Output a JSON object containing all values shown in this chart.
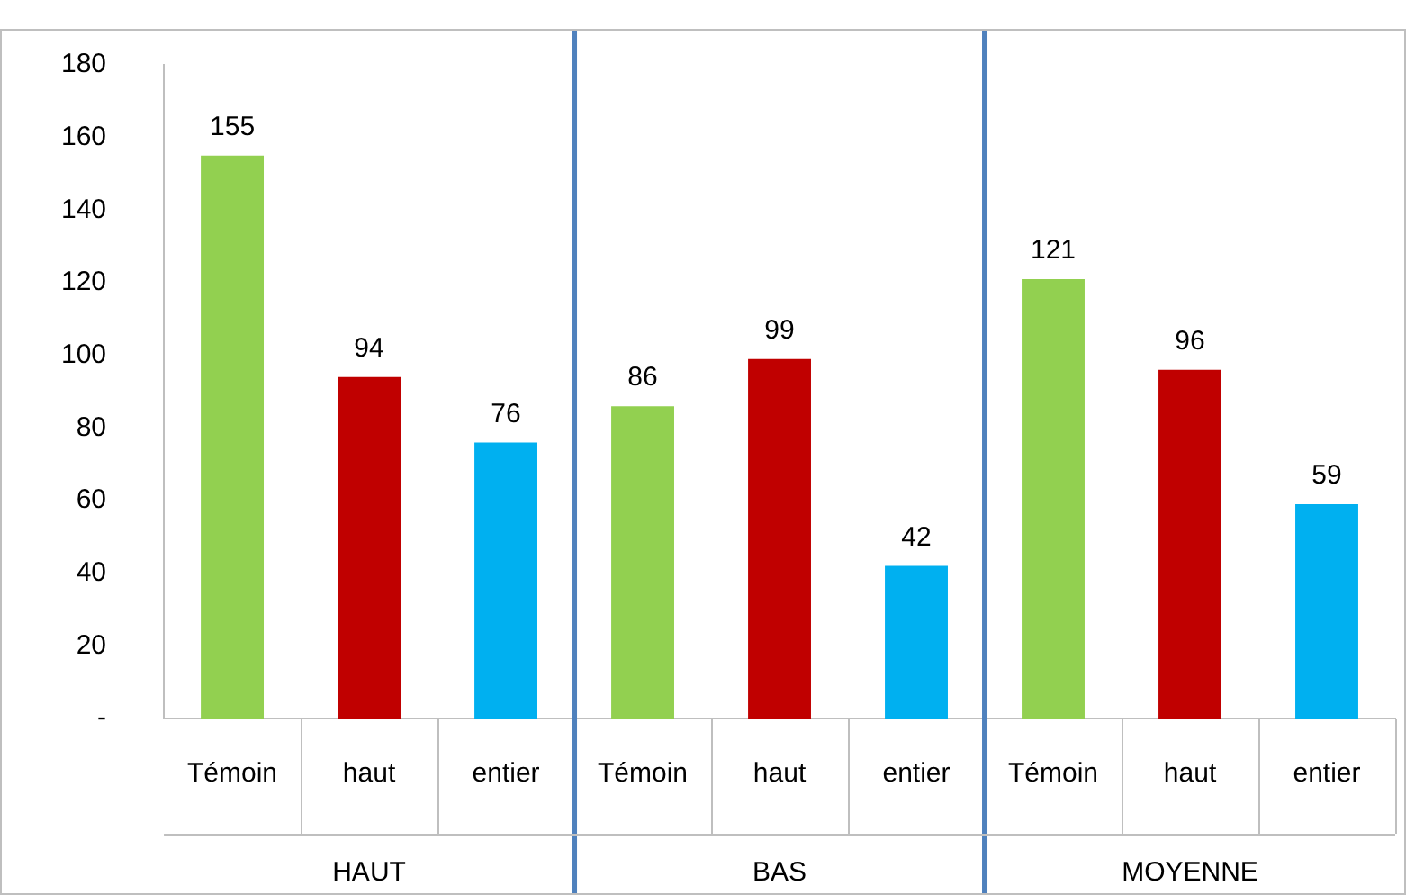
{
  "chart_data": {
    "type": "bar",
    "categories": [
      "Témoin",
      "haut",
      "entier",
      "Témoin",
      "haut",
      "entier",
      "Témoin",
      "haut",
      "entier"
    ],
    "values": [
      155,
      94,
      76,
      86,
      99,
      42,
      121,
      96,
      59
    ],
    "colors": [
      "#92d050",
      "#c00000",
      "#00b0f0",
      "#92d050",
      "#c00000",
      "#00b0f0",
      "#92d050",
      "#c00000",
      "#00b0f0"
    ],
    "ylim": [
      0,
      180
    ],
    "yticks": [
      {
        "value": 0,
        "label": "-"
      },
      20,
      40,
      60,
      80,
      100,
      120,
      140,
      160,
      180
    ],
    "data_labels": true,
    "annotations": [
      "HAUT",
      "BAS",
      "MOYENNE"
    ]
  }
}
